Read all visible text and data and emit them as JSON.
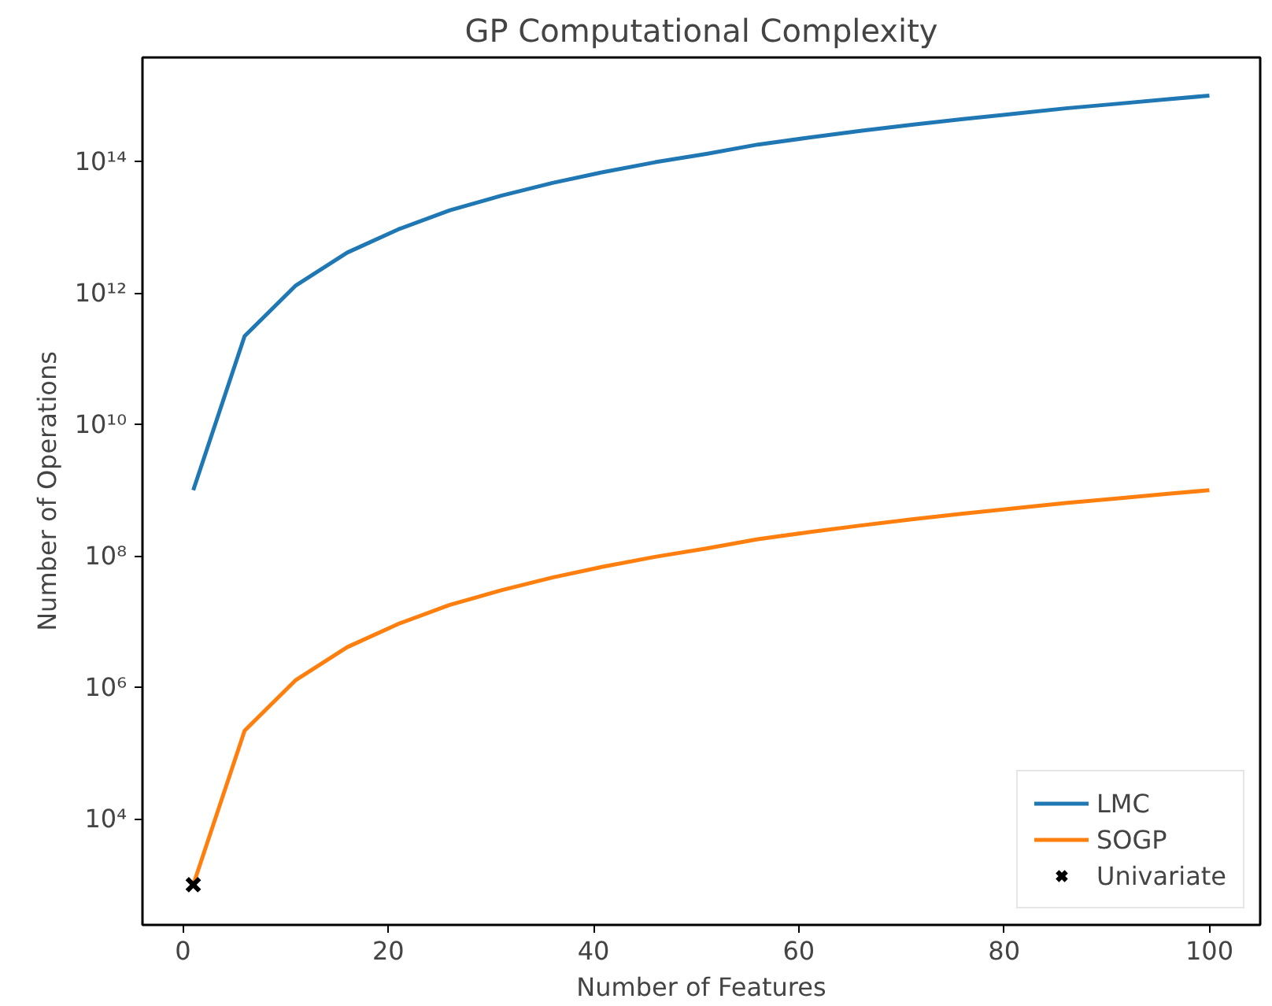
{
  "chart_data": {
    "type": "line",
    "title": "GP Computational Complexity",
    "xlabel": "Number of Features",
    "ylabel": "Number of Operations",
    "x": [
      1,
      6,
      11,
      16,
      21,
      26,
      31,
      36,
      41,
      46,
      51,
      56,
      61,
      66,
      71,
      76,
      81,
      86,
      91,
      96,
      100
    ],
    "series": [
      {
        "name": "LMC",
        "color": "#1f77b4",
        "values": [
          1000000000.0,
          220000000000.0,
          1300000000000.0,
          4100000000000.0,
          9300000000000.0,
          18000000000000.0,
          30000000000000.0,
          47000000000000.0,
          69000000000000.0,
          97000000000000.0,
          130000000000000.0,
          180000000000000.0,
          230000000000000.0,
          290000000000000.0,
          360000000000000.0,
          440000000000000.0,
          530000000000000.0,
          640000000000000.0,
          750000000000000.0,
          880000000000000.0,
          1000000000000000.0
        ]
      },
      {
        "name": "SOGP",
        "color": "#ff7f0e",
        "values": [
          1000.0,
          220000.0,
          1300000.0,
          4100000.0,
          9300000.0,
          18000000.0,
          30000000.0,
          47000000.0,
          69000000.0,
          97000000.0,
          130000000.0,
          180000000.0,
          230000000.0,
          290000000.0,
          360000000.0,
          440000000.0,
          530000000.0,
          640000000.0,
          750000000.0,
          880000000.0,
          1000000000.0
        ]
      },
      {
        "name": "Univariate",
        "type": "scatter",
        "marker": "cross",
        "color": "#000000",
        "x": [
          1
        ],
        "values": [
          1000.0
        ]
      }
    ],
    "log": "y",
    "xlim": [
      -3.95,
      104.95
    ],
    "ylim": [
      245,
      3800000000000000.0
    ],
    "xticks": [
      0,
      20,
      40,
      60,
      80,
      100
    ],
    "yticks": [
      {
        "value": 10000.0,
        "label": "10⁴"
      },
      {
        "value": 1000000.0,
        "label": "10⁶"
      },
      {
        "value": 100000000.0,
        "label": "10⁸"
      },
      {
        "value": 10000000000.0,
        "label": "10¹⁰"
      },
      {
        "value": 1000000000000.0,
        "label": "10¹²"
      },
      {
        "value": 100000000000000.0,
        "label": "10¹⁴"
      }
    ],
    "grid": false,
    "legend": "bottom right"
  }
}
